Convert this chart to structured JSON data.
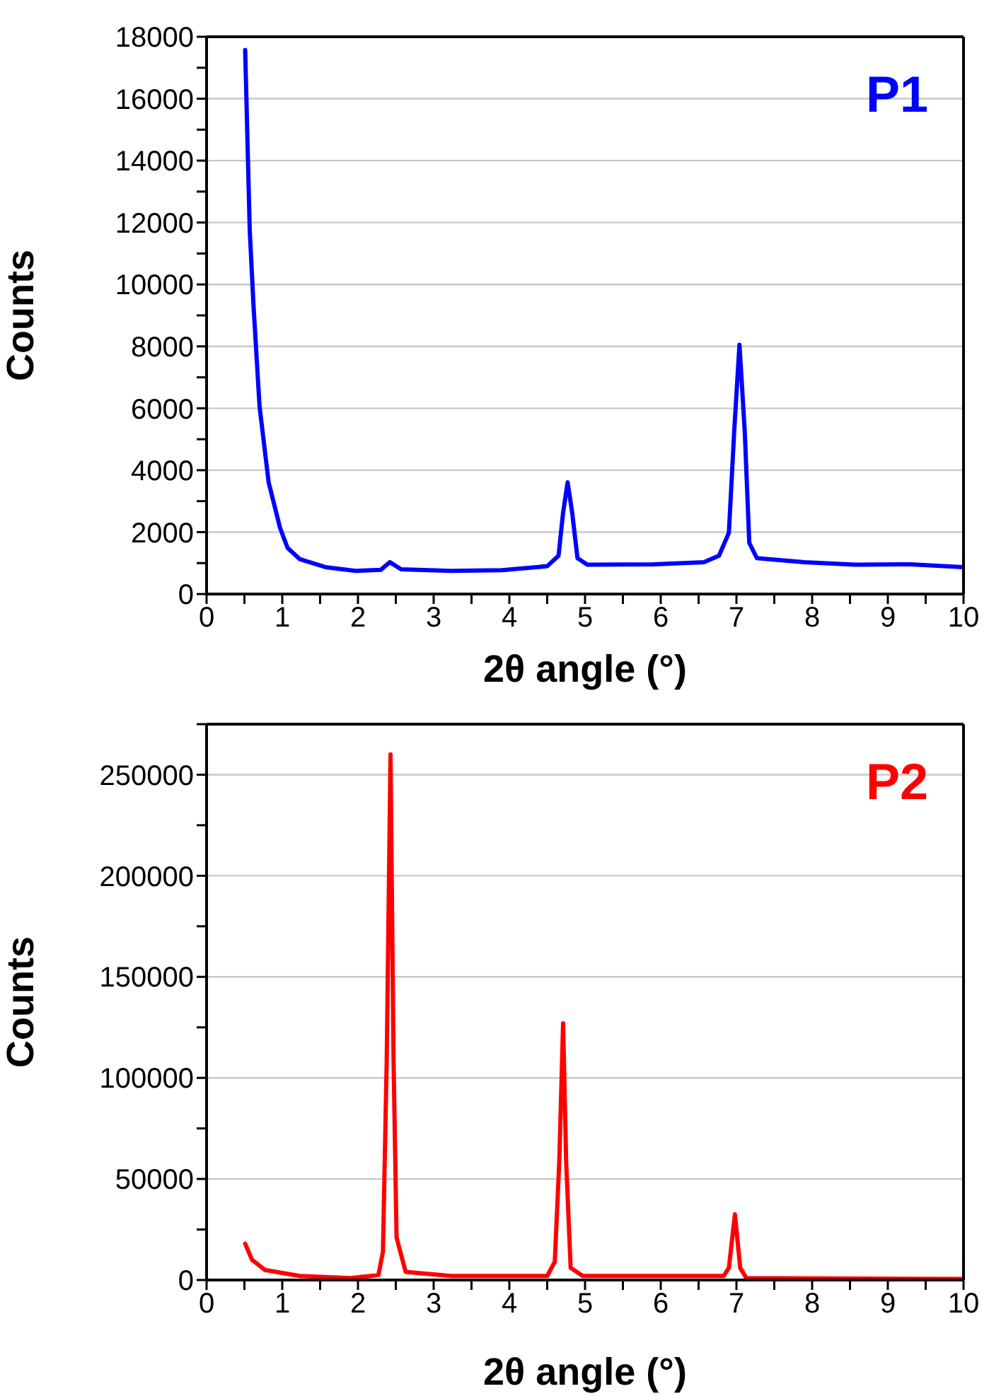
{
  "chart_data": [
    {
      "type": "line",
      "xlabel": "2θ angle (°)",
      "ylabel": "Counts",
      "annotations": [
        "P1"
      ],
      "grid": "y",
      "marker": "none",
      "line_style": "solid",
      "xlim": [
        0,
        10
      ],
      "xticks": [
        0,
        {
          "value": 0.5,
          "label": null
        },
        1,
        {
          "value": 1.5,
          "label": null
        },
        2,
        {
          "value": 2.5,
          "label": null
        },
        3,
        {
          "value": 3.5,
          "label": null
        },
        4,
        {
          "value": 4.5,
          "label": null
        },
        5,
        {
          "value": 5.5,
          "label": null
        },
        6,
        {
          "value": 6.5,
          "label": null
        },
        7,
        {
          "value": 7.5,
          "label": null
        },
        8,
        {
          "value": 8.5,
          "label": null
        },
        9,
        {
          "value": 9.5,
          "label": null
        },
        10
      ],
      "ylim": [
        0,
        18000
      ],
      "yticks": [
        0,
        {
          "value": 1000,
          "label": null
        },
        2000,
        {
          "value": 3000,
          "label": null
        },
        4000,
        {
          "value": 5000,
          "label": null
        },
        6000,
        {
          "value": 7000,
          "label": null
        },
        8000,
        {
          "value": 9000,
          "label": null
        },
        10000,
        {
          "value": 11000,
          "label": null
        },
        12000,
        {
          "value": 13000,
          "label": null
        },
        14000,
        {
          "value": 15000,
          "label": null
        },
        16000,
        {
          "value": 17000,
          "label": null
        },
        18000
      ],
      "series": [
        {
          "color": "#0000ff",
          "x": [
            0.51,
            0.57,
            0.62,
            0.7,
            0.82,
            0.97,
            1.07,
            1.23,
            1.57,
            1.97,
            2.3,
            2.42,
            2.57,
            3.23,
            3.9,
            4.5,
            4.65,
            4.71,
            4.77,
            4.83,
            4.9,
            5.03,
            5.9,
            6.57,
            6.77,
            6.9,
            6.97,
            7.04,
            7.11,
            7.17,
            7.27,
            7.9,
            8.57,
            9.3,
            10
          ],
          "values": [
            17570,
            11770,
            9320,
            6060,
            3610,
            2140,
            1490,
            1130,
            870,
            750,
            780,
            1030,
            800,
            750,
            770,
            900,
            1240,
            2630,
            3610,
            2630,
            1160,
            950,
            960,
            1030,
            1240,
            1980,
            5240,
            8050,
            5240,
            1650,
            1160,
            1030,
            950,
            960,
            870
          ]
        }
      ]
    },
    {
      "type": "line",
      "xlabel": "2θ angle (°)",
      "ylabel": "Counts",
      "annotations": [
        "P2"
      ],
      "grid": "y",
      "marker": "none",
      "line_style": "solid",
      "xlim": [
        0,
        10
      ],
      "xticks": [
        0,
        {
          "value": 0.5,
          "label": null
        },
        1,
        {
          "value": 1.5,
          "label": null
        },
        2,
        {
          "value": 2.5,
          "label": null
        },
        3,
        {
          "value": 3.5,
          "label": null
        },
        4,
        {
          "value": 4.5,
          "label": null
        },
        5,
        {
          "value": 5.5,
          "label": null
        },
        6,
        {
          "value": 6.5,
          "label": null
        },
        7,
        {
          "value": 7.5,
          "label": null
        },
        8,
        {
          "value": 8.5,
          "label": null
        },
        9,
        {
          "value": 9.5,
          "label": null
        },
        10
      ],
      "ylim": [
        0,
        275000
      ],
      "yticks": [
        0,
        {
          "value": 25000,
          "label": null
        },
        50000,
        {
          "value": 75000,
          "label": null
        },
        100000,
        {
          "value": 125000,
          "label": null
        },
        150000,
        {
          "value": 175000,
          "label": null
        },
        200000,
        {
          "value": 225000,
          "label": null
        },
        250000,
        {
          "value": 275000,
          "label": null
        }
      ],
      "series": [
        {
          "color": "#ff0000",
          "x": [
            0.51,
            0.6,
            0.77,
            1.23,
            1.9,
            2.17,
            2.27,
            2.33,
            2.38,
            2.43,
            2.47,
            2.51,
            2.63,
            3.23,
            4.5,
            4.6,
            4.66,
            4.71,
            4.75,
            4.81,
            4.97,
            6.83,
            6.9,
            6.98,
            7.05,
            7.13,
            10
          ],
          "values": [
            18000,
            10000,
            5000,
            2000,
            1000,
            2000,
            2500,
            14000,
            109000,
            260000,
            109000,
            21000,
            4000,
            2000,
            2000,
            9000,
            59000,
            127000,
            59000,
            6000,
            2000,
            2000,
            6000,
            32500,
            6000,
            1000,
            500
          ]
        }
      ]
    }
  ]
}
